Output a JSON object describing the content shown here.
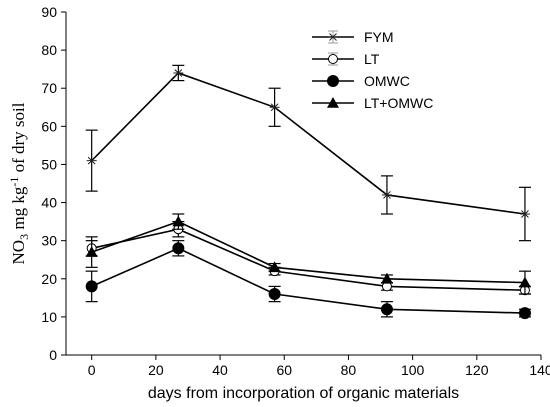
{
  "chart_data": {
    "type": "line",
    "xlabel": "days from incorporation of organic materials",
    "ylabel_main": "NO",
    "ylabel_sub": "3",
    "ylabel_mid": " mg kg",
    "ylabel_sup": "-1",
    "ylabel_tail": " of dry soil",
    "xlim": [
      -8,
      140
    ],
    "ylim": [
      0,
      90
    ],
    "xticks": [
      0,
      20,
      40,
      60,
      80,
      100,
      120,
      140
    ],
    "yticks": [
      0,
      10,
      20,
      30,
      40,
      50,
      60,
      70,
      80,
      90
    ],
    "grid": false,
    "legend_position": "top-right",
    "series": [
      {
        "name": "FYM",
        "marker": "star",
        "x": [
          0,
          27,
          57,
          92,
          135
        ],
        "y": [
          51,
          74,
          65,
          42,
          37
        ],
        "err": [
          8,
          2,
          5,
          5,
          7
        ]
      },
      {
        "name": "LT",
        "marker": "circle-open",
        "x": [
          0,
          27,
          57,
          92,
          135
        ],
        "y": [
          28,
          33,
          22,
          18,
          17
        ],
        "err": [
          2,
          2,
          1,
          1,
          1
        ]
      },
      {
        "name": "OMWC",
        "marker": "circle-filled",
        "x": [
          0,
          27,
          57,
          92,
          135
        ],
        "y": [
          18,
          28,
          16,
          12,
          11
        ],
        "err": [
          4,
          2,
          2,
          2,
          1
        ]
      },
      {
        "name": "LT+OMWC",
        "marker": "triangle",
        "x": [
          0,
          27,
          57,
          92,
          135
        ],
        "y": [
          27,
          35,
          23,
          20,
          19
        ],
        "err": [
          4,
          2,
          1,
          1,
          3
        ]
      }
    ]
  }
}
